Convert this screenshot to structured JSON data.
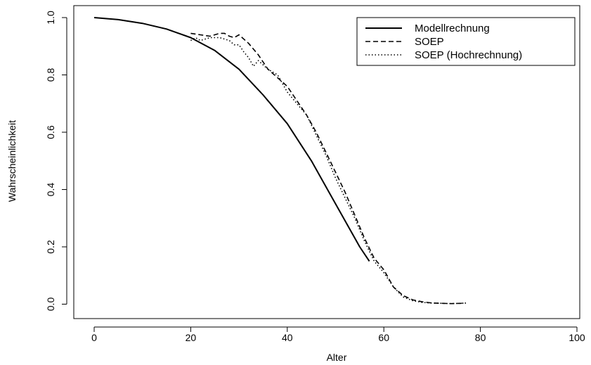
{
  "chart_data": {
    "type": "line",
    "title": "",
    "xlabel": "Alter",
    "ylabel": "Wahrscheinlichkeit",
    "xlim": [
      0,
      100
    ],
    "ylim": [
      0,
      1
    ],
    "x_ticks": [
      "0",
      "20",
      "40",
      "60",
      "80",
      "100"
    ],
    "y_ticks": [
      "0.0",
      "0.2",
      "0.4",
      "0.6",
      "0.8",
      "1.0"
    ],
    "grid": false,
    "legend_position": "top-right",
    "series": [
      {
        "name": "Modellrechnung",
        "line_style": "solid",
        "x": [
          0,
          5,
          10,
          15,
          20,
          25,
          30,
          35,
          40,
          45,
          50,
          55,
          57
        ],
        "y": [
          1.0,
          0.993,
          0.98,
          0.96,
          0.93,
          0.885,
          0.82,
          0.73,
          0.63,
          0.5,
          0.35,
          0.2,
          0.15
        ]
      },
      {
        "name": "SOEP",
        "line_style": "dashed",
        "x": [
          20,
          22,
          24,
          26,
          27,
          28,
          29,
          30,
          32,
          34,
          36,
          38,
          40,
          42,
          44,
          46,
          48,
          50,
          52,
          54,
          56,
          58,
          60,
          62,
          64,
          66,
          68,
          70,
          72,
          74,
          76,
          77
        ],
        "y": [
          0.945,
          0.94,
          0.935,
          0.945,
          0.945,
          0.935,
          0.93,
          0.94,
          0.91,
          0.87,
          0.82,
          0.79,
          0.76,
          0.71,
          0.66,
          0.6,
          0.53,
          0.46,
          0.39,
          0.31,
          0.23,
          0.16,
          0.12,
          0.06,
          0.03,
          0.015,
          0.008,
          0.004,
          0.003,
          0.002,
          0.003,
          0.004
        ]
      },
      {
        "name": "SOEP (Hochrechnung)",
        "line_style": "dotted",
        "x": [
          20,
          21,
          22,
          24,
          26,
          28,
          29,
          30,
          31,
          32,
          33,
          34,
          36,
          38,
          40,
          42,
          44,
          46,
          48,
          50,
          52,
          54,
          56,
          58,
          60,
          62,
          64,
          66,
          68,
          70,
          72,
          74,
          76,
          77
        ],
        "y": [
          0.92,
          0.93,
          0.92,
          0.93,
          0.93,
          0.92,
          0.905,
          0.905,
          0.88,
          0.86,
          0.83,
          0.85,
          0.82,
          0.8,
          0.74,
          0.7,
          0.66,
          0.59,
          0.52,
          0.44,
          0.37,
          0.3,
          0.22,
          0.15,
          0.11,
          0.06,
          0.025,
          0.012,
          0.006,
          0.004,
          0.003,
          0.002,
          0.003,
          0.004
        ]
      }
    ]
  }
}
